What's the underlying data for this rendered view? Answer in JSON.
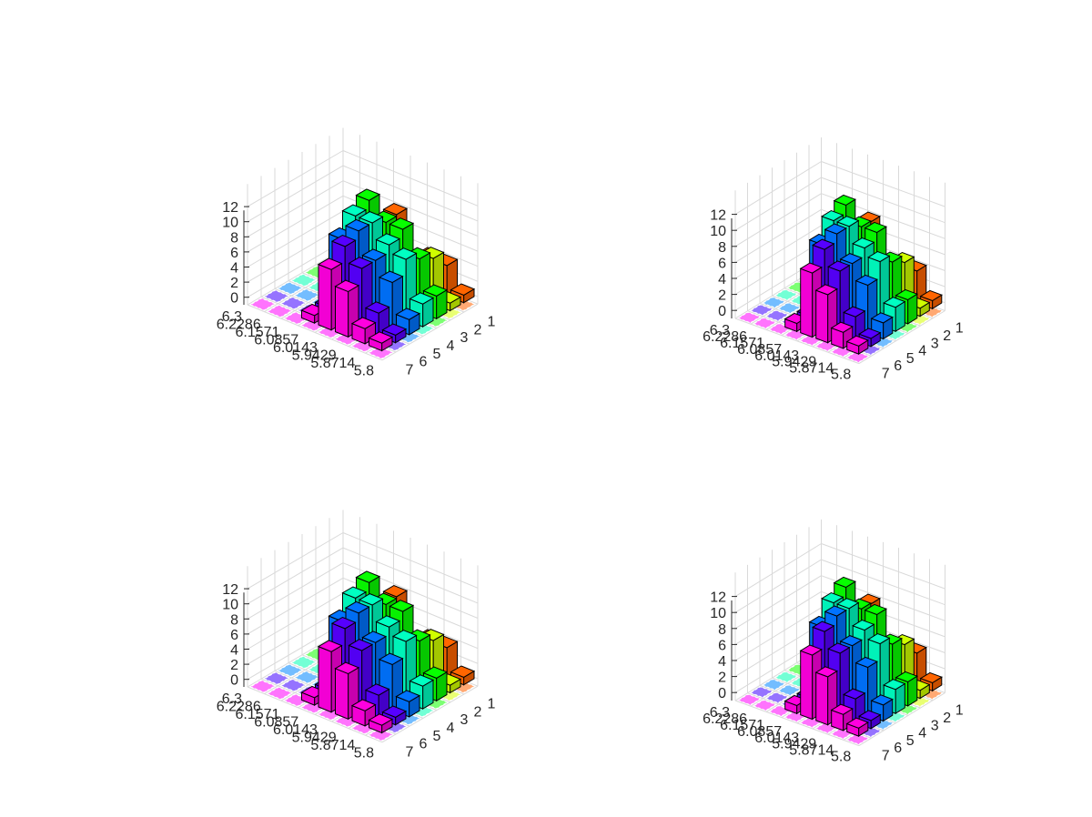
{
  "figure": {
    "background": "#ffffff",
    "grid": true,
    "grid_color": "#d9d9d9",
    "edge_color": "#000000"
  },
  "chart_data": [
    {
      "type": "bar3",
      "z_ticks": [
        "0",
        "2",
        "4",
        "6",
        "8",
        "10",
        "12"
      ],
      "z_range": [
        -1,
        12
      ],
      "row_ticks": [
        "6.3",
        "6.2286",
        "6.1571",
        "6.0857",
        "6.0143",
        "5.9429",
        "5.8714",
        "5.8"
      ],
      "col_ticks": [
        "1",
        "2",
        "3",
        "4",
        "5",
        "6",
        "7"
      ],
      "colormap": "hsv",
      "grid": true,
      "values": [
        [
          0,
          0,
          0,
          0,
          0,
          0,
          0
        ],
        [
          0,
          0,
          0,
          0,
          0,
          0,
          0
        ],
        [
          0,
          0,
          0,
          0,
          0,
          0,
          0
        ],
        [
          1,
          1,
          9,
          11,
          12,
          4,
          8
        ],
        [
          8,
          10,
          11,
          11,
          10,
          6,
          1
        ],
        [
          6,
          8,
          8,
          9,
          10,
          3,
          4
        ],
        [
          2,
          3,
          6,
          8,
          7,
          6,
          4
        ],
        [
          1,
          1,
          2,
          3,
          3,
          1,
          1
        ]
      ]
    },
    {
      "type": "bar3",
      "z_ticks": [
        "0",
        "2",
        "4",
        "6",
        "8",
        "10",
        "12"
      ],
      "z_range": [
        -1,
        12
      ],
      "row_ticks": [
        "6.3",
        "6.2286",
        "6.1571",
        "6.0857",
        "6.0143",
        "5.9429",
        "5.8714",
        "5.8"
      ],
      "col_ticks": [
        "1",
        "2",
        "3",
        "4",
        "5",
        "6",
        "7"
      ],
      "colormap": "hsv",
      "grid": true,
      "values": [
        [
          0,
          0,
          0,
          0,
          0,
          0,
          0
        ],
        [
          0,
          0,
          0,
          0,
          0,
          0,
          0
        ],
        [
          0,
          0,
          0,
          0,
          0,
          0,
          0
        ],
        [
          1,
          1,
          9,
          11,
          12,
          4,
          8
        ],
        [
          8,
          10,
          11,
          11,
          10,
          6,
          1
        ],
        [
          6,
          8,
          8,
          9,
          10,
          3,
          4
        ],
        [
          2,
          3,
          6,
          8,
          7,
          6,
          4
        ],
        [
          1,
          1,
          2,
          3,
          3,
          1,
          1
        ]
      ]
    },
    {
      "type": "bar3",
      "z_ticks": [
        "0",
        "2",
        "4",
        "6",
        "8",
        "10",
        "12"
      ],
      "z_range": [
        -1,
        12
      ],
      "row_ticks": [
        "6.3",
        "6.2286",
        "6.1571",
        "6.0857",
        "6.0143",
        "5.9429",
        "5.8714",
        "5.8"
      ],
      "col_ticks": [
        "1",
        "2",
        "3",
        "4",
        "5",
        "6",
        "7"
      ],
      "colormap": "hsv",
      "grid": true,
      "values": [
        [
          0,
          0,
          0,
          0,
          0,
          0,
          0
        ],
        [
          0,
          0,
          0,
          0,
          0,
          0,
          0
        ],
        [
          0,
          0,
          0,
          0,
          0,
          0,
          0
        ],
        [
          1,
          1,
          9,
          11,
          12,
          4,
          8
        ],
        [
          8,
          10,
          11,
          11,
          10,
          6,
          1
        ],
        [
          6,
          8,
          8,
          9,
          10,
          3,
          4
        ],
        [
          2,
          3,
          6,
          8,
          7,
          6,
          4
        ],
        [
          1,
          1,
          2,
          3,
          3,
          1,
          1
        ]
      ]
    },
    {
      "type": "bar3",
      "z_ticks": [
        "0",
        "2",
        "4",
        "6",
        "8",
        "10",
        "12"
      ],
      "z_range": [
        -1,
        12
      ],
      "row_ticks": [
        "6.3",
        "6.2286",
        "6.1571",
        "6.0857",
        "6.0143",
        "5.9429",
        "5.8714",
        "5.8"
      ],
      "col_ticks": [
        "1",
        "2",
        "3",
        "4",
        "5",
        "6",
        "7"
      ],
      "colormap": "hsv",
      "grid": true,
      "values": [
        [
          0,
          0,
          0,
          0,
          0,
          0,
          0
        ],
        [
          0,
          0,
          0,
          0,
          0,
          0,
          0
        ],
        [
          0,
          0,
          0,
          0,
          0,
          0,
          0
        ],
        [
          1,
          1,
          9,
          11,
          12,
          4,
          8
        ],
        [
          8,
          10,
          11,
          11,
          10,
          6,
          1
        ],
        [
          6,
          8,
          8,
          9,
          10,
          3,
          4
        ],
        [
          2,
          3,
          6,
          8,
          7,
          6,
          4
        ],
        [
          1,
          1,
          2,
          3,
          3,
          1,
          1
        ]
      ]
    }
  ]
}
